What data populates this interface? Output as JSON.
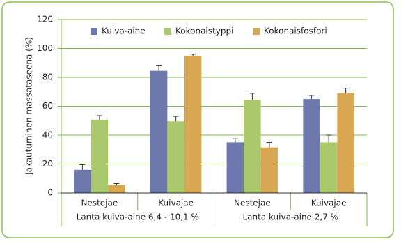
{
  "chart_data": {
    "type": "bar",
    "ylabel": "Jakautuminen massataseena (%)",
    "categories": [
      "Nestejae",
      "Kuivajae",
      "Nestejae",
      "Kuivajae"
    ],
    "groups": [
      "Lanta kuiva-aine 6,4 - 10,1 %",
      "Lanta kuiva-aine 2,7 %"
    ],
    "series": [
      {
        "name": "Kuiva-aine",
        "color": "#6d78ad",
        "values": [
          16,
          84.5,
          35,
          65
        ],
        "errors": [
          3.5,
          3.5,
          2.5,
          2.5
        ]
      },
      {
        "name": "Kokonaistyppi",
        "color": "#aac86c",
        "values": [
          50.5,
          49.5,
          64.5,
          35
        ],
        "errors": [
          3,
          3.5,
          4.5,
          5
        ]
      },
      {
        "name": "Kokonaisfosfori",
        "color": "#d6a652",
        "values": [
          5.5,
          95,
          31.5,
          69
        ],
        "errors": [
          1,
          1,
          3.5,
          3.5
        ]
      }
    ],
    "ylim": [
      0,
      120
    ],
    "yticks": [
      0,
      20,
      40,
      60,
      80,
      100,
      120
    ],
    "grid": true
  }
}
